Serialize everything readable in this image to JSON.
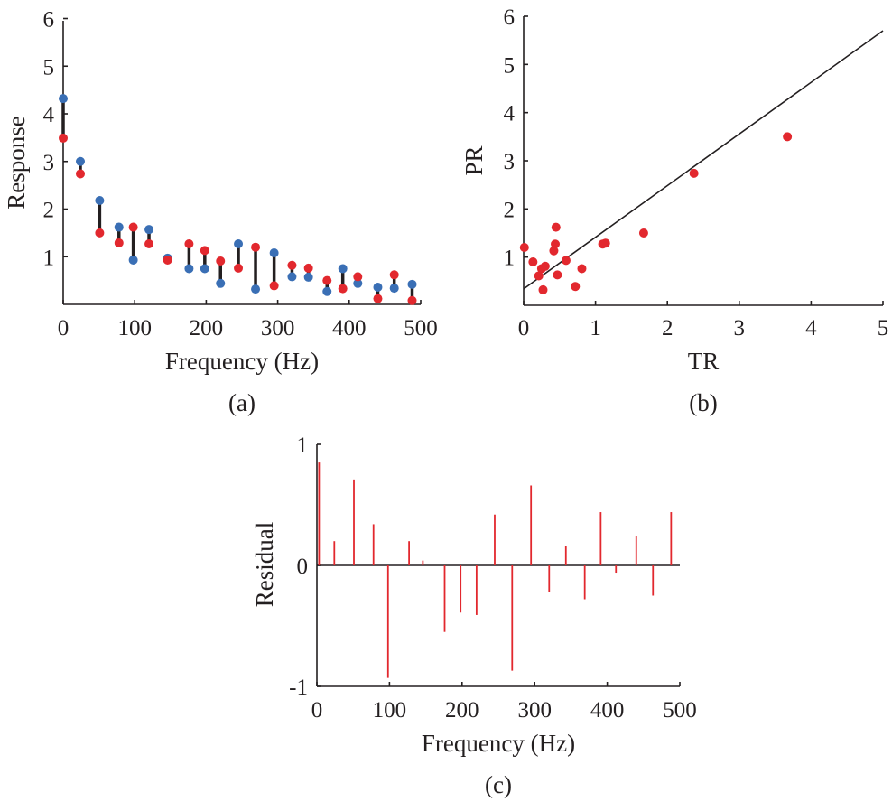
{
  "chart_data": [
    {
      "id": "a",
      "type": "scatter",
      "caption": "(a)",
      "xlabel": "Frequency (Hz)",
      "ylabel": "Response",
      "xlim": [
        0,
        500
      ],
      "ylim": [
        0,
        6
      ],
      "xticks": [
        0,
        100,
        200,
        300,
        400,
        500
      ],
      "yticks": [
        1,
        2,
        3,
        4,
        5,
        6
      ],
      "colors": {
        "measured": "#3a6fb5",
        "predicted": "#e2282e",
        "connector": "#231f20"
      },
      "frequencies": [
        0,
        24,
        51,
        78,
        98,
        120,
        146,
        176,
        198,
        220,
        245,
        269,
        295,
        320,
        343,
        369,
        391,
        412,
        440,
        463,
        488
      ],
      "series": [
        {
          "key": "blue",
          "values": [
            4.32,
            3.0,
            2.18,
            1.62,
            0.93,
            1.57,
            0.97,
            0.75,
            0.75,
            0.44,
            1.27,
            0.32,
            1.08,
            0.58,
            0.57,
            0.27,
            0.75,
            0.44,
            0.36,
            0.34,
            0.42
          ]
        },
        {
          "key": "red",
          "values": [
            3.49,
            2.74,
            1.5,
            1.29,
            1.62,
            1.27,
            0.93,
            1.27,
            1.13,
            0.91,
            0.76,
            1.2,
            0.39,
            0.82,
            0.76,
            0.5,
            0.33,
            0.58,
            0.12,
            0.62,
            0.08
          ]
        }
      ]
    },
    {
      "id": "b",
      "type": "scatter",
      "caption": "(b)",
      "xlabel": "TR",
      "ylabel": "PR",
      "xlim": [
        0,
        5
      ],
      "ylim": [
        0,
        6
      ],
      "xticks": [
        0,
        1,
        2,
        3,
        4,
        5
      ],
      "yticks": [
        1,
        2,
        3,
        4,
        5,
        6
      ],
      "colors": {
        "points": "#e2282e",
        "line": "#231f20"
      },
      "points": [
        [
          0.01,
          1.2
        ],
        [
          0.13,
          0.9
        ],
        [
          0.21,
          0.61
        ],
        [
          0.25,
          0.76
        ],
        [
          0.27,
          0.32
        ],
        [
          0.3,
          0.81
        ],
        [
          0.42,
          1.13
        ],
        [
          0.44,
          1.27
        ],
        [
          0.45,
          1.62
        ],
        [
          0.47,
          0.63
        ],
        [
          0.59,
          0.93
        ],
        [
          0.72,
          0.39
        ],
        [
          0.81,
          0.76
        ],
        [
          1.1,
          1.27
        ],
        [
          1.14,
          1.29
        ],
        [
          1.67,
          1.5
        ],
        [
          2.37,
          2.74
        ],
        [
          3.67,
          3.5
        ]
      ],
      "fit_line": {
        "x": [
          0,
          5
        ],
        "y": [
          0.34,
          5.7
        ]
      }
    },
    {
      "id": "c",
      "type": "bar",
      "caption": "(c)",
      "xlabel": "Frequency (Hz)",
      "ylabel": "Residual",
      "xlim": [
        0,
        500
      ],
      "ylim": [
        -1,
        1
      ],
      "xticks": [
        0,
        100,
        200,
        300,
        400,
        500
      ],
      "yticks": [
        -1,
        0,
        1
      ],
      "ytick_labels": [
        "-1",
        "0",
        "1"
      ],
      "colors": {
        "bars": "#e2282e"
      },
      "x": [
        3,
        24,
        51,
        78,
        98,
        127,
        146,
        176,
        198,
        220,
        245,
        269,
        295,
        320,
        343,
        369,
        391,
        412,
        440,
        463,
        488
      ],
      "values": [
        0.85,
        0.2,
        0.71,
        0.34,
        -0.93,
        0.2,
        0.04,
        -0.55,
        -0.39,
        -0.41,
        0.42,
        -0.87,
        0.66,
        -0.22,
        0.16,
        -0.28,
        0.44,
        -0.06,
        0.24,
        -0.25,
        0.44
      ]
    }
  ]
}
